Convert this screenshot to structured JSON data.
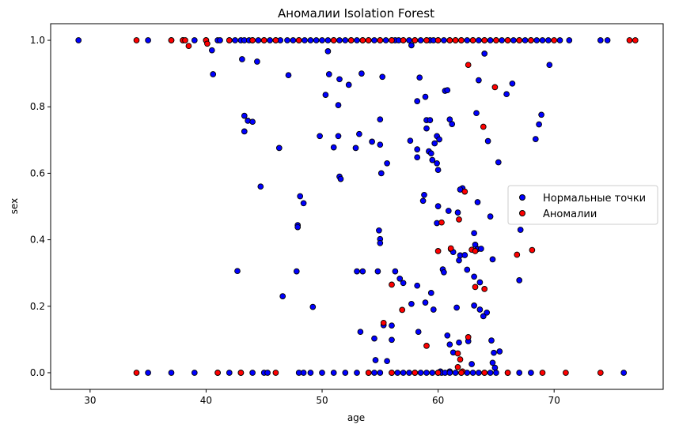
{
  "chart_data": {
    "type": "scatter",
    "title": "Аномалии Isolation Forest",
    "xlabel": "age",
    "ylabel": "sex",
    "xlim": [
      26.6,
      79.4
    ],
    "ylim": [
      -0.05,
      1.05
    ],
    "x_ticks": [
      30,
      40,
      50,
      60,
      70
    ],
    "y_ticks": [
      0.0,
      0.2,
      0.4,
      0.6,
      0.8,
      1.0
    ],
    "x_tick_labels": [
      "30",
      "40",
      "50",
      "60",
      "70"
    ],
    "y_tick_labels": [
      "0.0",
      "0.2",
      "0.4",
      "0.6",
      "0.8",
      "1.0"
    ],
    "grid": false,
    "legend_position": "center-right",
    "series": [
      {
        "name": "Нормальные точки",
        "color": "#0000ff",
        "edge": "#000000",
        "points": [
          [
            29,
            1
          ],
          [
            35,
            1
          ],
          [
            37,
            1
          ],
          [
            38,
            1
          ],
          [
            39,
            1
          ],
          [
            40,
            1
          ],
          [
            41,
            1
          ],
          [
            41.2,
            1
          ],
          [
            42,
            1
          ],
          [
            42.5,
            1
          ],
          [
            43,
            1
          ],
          [
            43.3,
            1
          ],
          [
            43.7,
            1
          ],
          [
            44,
            1
          ],
          [
            44.5,
            1
          ],
          [
            45,
            1
          ],
          [
            45.5,
            1
          ],
          [
            46,
            1
          ],
          [
            46.4,
            1
          ],
          [
            47,
            1
          ],
          [
            47.5,
            1
          ],
          [
            48,
            1
          ],
          [
            48.5,
            1
          ],
          [
            49,
            1
          ],
          [
            49.5,
            1
          ],
          [
            50,
            1
          ],
          [
            50.5,
            1
          ],
          [
            51,
            1
          ],
          [
            51.5,
            1
          ],
          [
            52,
            1
          ],
          [
            52.5,
            1
          ],
          [
            53,
            1
          ],
          [
            53.5,
            1
          ],
          [
            54,
            1
          ],
          [
            54.5,
            1
          ],
          [
            55,
            1
          ],
          [
            55.5,
            1
          ],
          [
            56,
            1
          ],
          [
            56.3,
            1
          ],
          [
            56.6,
            1
          ],
          [
            57,
            1
          ],
          [
            57.5,
            1
          ],
          [
            58,
            1
          ],
          [
            58.5,
            1
          ],
          [
            59,
            1
          ],
          [
            59.3,
            1
          ],
          [
            59.6,
            1
          ],
          [
            60,
            1
          ],
          [
            60.5,
            1
          ],
          [
            61,
            1
          ],
          [
            61.5,
            1
          ],
          [
            62,
            1
          ],
          [
            62.5,
            1
          ],
          [
            63,
            1
          ],
          [
            63.5,
            1
          ],
          [
            64,
            1
          ],
          [
            64.5,
            1
          ],
          [
            65,
            1
          ],
          [
            65.5,
            1
          ],
          [
            66,
            1
          ],
          [
            66.5,
            1
          ],
          [
            67,
            1
          ],
          [
            67.5,
            1
          ],
          [
            68,
            1
          ],
          [
            68.5,
            1
          ],
          [
            69,
            1
          ],
          [
            69.5,
            1
          ],
          [
            70.5,
            1
          ],
          [
            71.3,
            1
          ],
          [
            74,
            1
          ],
          [
            74.6,
            1
          ],
          [
            40.5,
            0.97
          ],
          [
            50.5,
            0.967
          ],
          [
            57.7,
            0.985
          ],
          [
            64,
            0.96
          ],
          [
            43.1,
            0.943
          ],
          [
            44.4,
            0.936
          ],
          [
            69.6,
            0.926
          ],
          [
            40.6,
            0.898
          ],
          [
            47.1,
            0.895
          ],
          [
            50.6,
            0.898
          ],
          [
            51.5,
            0.883
          ],
          [
            53.4,
            0.9
          ],
          [
            52.3,
            0.866
          ],
          [
            55.2,
            0.89
          ],
          [
            58.4,
            0.888
          ],
          [
            63.5,
            0.88
          ],
          [
            66.4,
            0.87
          ],
          [
            50.3,
            0.836
          ],
          [
            51.4,
            0.805
          ],
          [
            58.2,
            0.817
          ],
          [
            58.9,
            0.83
          ],
          [
            60.6,
            0.848
          ],
          [
            60.8,
            0.85
          ],
          [
            65.9,
            0.838
          ],
          [
            43.3,
            0.773
          ],
          [
            43.6,
            0.758
          ],
          [
            44,
            0.755
          ],
          [
            43.3,
            0.726
          ],
          [
            55,
            0.762
          ],
          [
            59,
            0.76
          ],
          [
            59.3,
            0.76
          ],
          [
            61,
            0.762
          ],
          [
            61.2,
            0.748
          ],
          [
            63.3,
            0.781
          ],
          [
            68.9,
            0.776
          ],
          [
            68.7,
            0.747
          ],
          [
            64.3,
            0.697
          ],
          [
            68.4,
            0.703
          ],
          [
            49.8,
            0.712
          ],
          [
            51.4,
            0.712
          ],
          [
            52.9,
            0.676
          ],
          [
            53.2,
            0.718
          ],
          [
            51.0,
            0.678
          ],
          [
            54.3,
            0.695
          ],
          [
            55.0,
            0.686
          ],
          [
            57.6,
            0.698
          ],
          [
            58.2,
            0.672
          ],
          [
            58.2,
            0.648
          ],
          [
            59.0,
            0.735
          ],
          [
            59.2,
            0.666
          ],
          [
            59.4,
            0.66
          ],
          [
            59.7,
            0.69
          ],
          [
            59.9,
            0.712
          ],
          [
            60.1,
            0.702
          ],
          [
            59.5,
            0.64
          ],
          [
            59.9,
            0.63
          ],
          [
            60.0,
            0.61
          ],
          [
            65.2,
            0.633
          ],
          [
            46.3,
            0.676
          ],
          [
            44.7,
            0.56
          ],
          [
            51.5,
            0.59
          ],
          [
            51.6,
            0.583
          ],
          [
            55.1,
            0.6
          ],
          [
            55.6,
            0.63
          ],
          [
            48.1,
            0.531
          ],
          [
            48.4,
            0.51
          ],
          [
            58.7,
            0.517
          ],
          [
            58.8,
            0.535
          ],
          [
            60.0,
            0.501
          ],
          [
            60.9,
            0.487
          ],
          [
            61.7,
            0.482
          ],
          [
            62.1,
            0.555
          ],
          [
            61.9,
            0.551
          ],
          [
            63.4,
            0.513
          ],
          [
            64.5,
            0.47
          ],
          [
            67.1,
            0.43
          ],
          [
            59.9,
            0.45
          ],
          [
            47.9,
            0.444
          ],
          [
            47.9,
            0.438
          ],
          [
            54.9,
            0.428
          ],
          [
            55.0,
            0.402
          ],
          [
            55.0,
            0.39
          ],
          [
            61.1,
            0.372
          ],
          [
            61.3,
            0.363
          ],
          [
            61.8,
            0.338
          ],
          [
            61.9,
            0.353
          ],
          [
            62.3,
            0.354
          ],
          [
            63.1,
            0.42
          ],
          [
            63.2,
            0.385
          ],
          [
            63.4,
            0.372
          ],
          [
            63.7,
            0.373
          ],
          [
            64.7,
            0.341
          ],
          [
            60.4,
            0.311
          ],
          [
            60.5,
            0.302
          ],
          [
            42.7,
            0.306
          ],
          [
            47.8,
            0.305
          ],
          [
            53.0,
            0.305
          ],
          [
            53.5,
            0.305
          ],
          [
            54.8,
            0.305
          ],
          [
            56.3,
            0.305
          ],
          [
            56.7,
            0.283
          ],
          [
            57.0,
            0.27
          ],
          [
            58.2,
            0.262
          ],
          [
            58.9,
            0.211
          ],
          [
            59.4,
            0.24
          ],
          [
            59.6,
            0.19
          ],
          [
            62.5,
            0.31
          ],
          [
            63.1,
            0.289
          ],
          [
            63.6,
            0.272
          ],
          [
            67.0,
            0.278
          ],
          [
            46.6,
            0.23
          ],
          [
            49.2,
            0.198
          ],
          [
            57.7,
            0.207
          ],
          [
            61.6,
            0.196
          ],
          [
            63.1,
            0.202
          ],
          [
            63.6,
            0.19
          ],
          [
            63.9,
            0.17
          ],
          [
            64.2,
            0.181
          ],
          [
            53.3,
            0.123
          ],
          [
            54.5,
            0.103
          ],
          [
            55.3,
            0.143
          ],
          [
            56.0,
            0.142
          ],
          [
            56.0,
            0.099
          ],
          [
            58.3,
            0.123
          ],
          [
            60.8,
            0.112
          ],
          [
            61.0,
            0.085
          ],
          [
            61.8,
            0.091
          ],
          [
            62.6,
            0.095
          ],
          [
            64.6,
            0.097
          ],
          [
            64.8,
            0.06
          ],
          [
            65.3,
            0.064
          ],
          [
            64.7,
            0.03
          ],
          [
            64.9,
            0.015
          ],
          [
            61.3,
            0.061
          ],
          [
            54.6,
            0.038
          ],
          [
            55.6,
            0.035
          ],
          [
            60.2,
            0.004
          ],
          [
            61.0,
            0.004
          ],
          [
            62.9,
            0.026
          ],
          [
            35,
            0
          ],
          [
            37,
            0
          ],
          [
            39,
            0
          ],
          [
            41,
            0
          ],
          [
            42,
            0
          ],
          [
            43,
            0
          ],
          [
            44,
            0
          ],
          [
            45,
            0
          ],
          [
            45.3,
            0
          ],
          [
            48,
            0
          ],
          [
            48.4,
            0
          ],
          [
            49,
            0
          ],
          [
            50,
            0
          ],
          [
            51,
            0
          ],
          [
            52,
            0
          ],
          [
            53,
            0
          ],
          [
            54,
            0
          ],
          [
            54.5,
            0
          ],
          [
            55,
            0
          ],
          [
            56,
            0
          ],
          [
            56.5,
            0
          ],
          [
            57,
            0
          ],
          [
            57.5,
            0
          ],
          [
            58,
            0
          ],
          [
            58.5,
            0
          ],
          [
            59,
            0
          ],
          [
            59.5,
            0
          ],
          [
            60,
            0
          ],
          [
            60.3,
            0
          ],
          [
            60.6,
            0
          ],
          [
            61,
            0
          ],
          [
            61.5,
            0
          ],
          [
            62,
            0
          ],
          [
            62.5,
            0
          ],
          [
            63,
            0
          ],
          [
            63.5,
            0
          ],
          [
            64,
            0
          ],
          [
            64.5,
            0
          ],
          [
            65,
            0
          ],
          [
            66,
            0
          ],
          [
            67,
            0
          ],
          [
            68,
            0
          ],
          [
            76,
            0
          ]
        ]
      },
      {
        "name": "Аномалии",
        "color": "#ff0000",
        "edge": "#000000",
        "points": [
          [
            34,
            1
          ],
          [
            37,
            1
          ],
          [
            38,
            1
          ],
          [
            38.2,
            1
          ],
          [
            40,
            1
          ],
          [
            40.1,
            0.99
          ],
          [
            42,
            1
          ],
          [
            44,
            1
          ],
          [
            45,
            1
          ],
          [
            46,
            1
          ],
          [
            48,
            1
          ],
          [
            51,
            1
          ],
          [
            52.5,
            1
          ],
          [
            53.5,
            1
          ],
          [
            54,
            1
          ],
          [
            55,
            1
          ],
          [
            56,
            1
          ],
          [
            57,
            1
          ],
          [
            58,
            1
          ],
          [
            59,
            1
          ],
          [
            60,
            1
          ],
          [
            61,
            1
          ],
          [
            61.5,
            1
          ],
          [
            62,
            1
          ],
          [
            63,
            1
          ],
          [
            64,
            1
          ],
          [
            65,
            1
          ],
          [
            66,
            1
          ],
          [
            67,
            1
          ],
          [
            68,
            1
          ],
          [
            70,
            1
          ],
          [
            76.5,
            1
          ],
          [
            77,
            1
          ],
          [
            38.5,
            0.983
          ],
          [
            62.6,
            0.926
          ],
          [
            64.9,
            0.859
          ],
          [
            63.9,
            0.74
          ],
          [
            62.3,
            0.545
          ],
          [
            61.8,
            0.461
          ],
          [
            60.3,
            0.452
          ],
          [
            60.0,
            0.366
          ],
          [
            61.1,
            0.374
          ],
          [
            62.9,
            0.37
          ],
          [
            63.2,
            0.366
          ],
          [
            66.8,
            0.355
          ],
          [
            68.1,
            0.369
          ],
          [
            56.0,
            0.265
          ],
          [
            63.2,
            0.258
          ],
          [
            64.0,
            0.252
          ],
          [
            56.9,
            0.189
          ],
          [
            55.3,
            0.15
          ],
          [
            62.6,
            0.107
          ],
          [
            59.0,
            0.081
          ],
          [
            61.7,
            0.058
          ],
          [
            61.9,
            0.04
          ],
          [
            61.7,
            0.017
          ],
          [
            62.1,
            0.004
          ],
          [
            34,
            0
          ],
          [
            41,
            0
          ],
          [
            43,
            0
          ],
          [
            46,
            0
          ],
          [
            54,
            0
          ],
          [
            56,
            0
          ],
          [
            58,
            0
          ],
          [
            60,
            0
          ],
          [
            62,
            0
          ],
          [
            64,
            0
          ],
          [
            66,
            0
          ],
          [
            69,
            0
          ],
          [
            71,
            0
          ],
          [
            74,
            0
          ]
        ]
      }
    ]
  }
}
